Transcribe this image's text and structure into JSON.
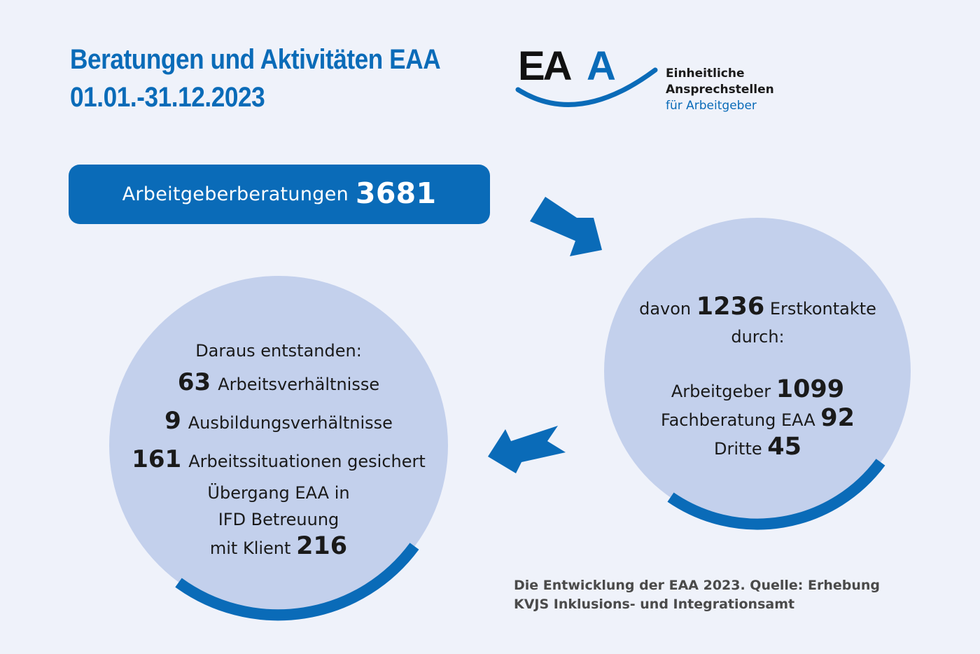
{
  "header": {
    "title_line1": "Beratungen und Aktivitäten EAA",
    "title_line2": "01.01.-31.12.2023"
  },
  "logo": {
    "mark": "EAA",
    "line1": "Einheitliche",
    "line2": "Ansprechstellen",
    "line3": "für Arbeitgeber"
  },
  "pill": {
    "label": "Arbeitgeberberatungen",
    "value": "3681"
  },
  "right_circle": {
    "prefix": "davon",
    "value": "1236",
    "suffix": "Erstkontakte",
    "line2": "durch:",
    "items": [
      {
        "label": "Arbeitgeber",
        "value": "1099"
      },
      {
        "label": "Fachberatung EAA",
        "value": "92"
      },
      {
        "label": "Dritte",
        "value": "45"
      }
    ]
  },
  "left_circle": {
    "heading": "Daraus entstanden:",
    "items": [
      {
        "value": "63",
        "label": "Arbeitsverhältnisse"
      },
      {
        "value": "9",
        "label": "Ausbildungsverhältnisse"
      },
      {
        "value": "161",
        "label": "Arbeitssituationen gesichert"
      }
    ],
    "transition_line1": "Übergang EAA in",
    "transition_line2": "IFD Betreuung",
    "transition_line3": "mit Klient",
    "transition_value": "216"
  },
  "source": {
    "line1": "Die Entwicklung der EAA 2023. Quelle: Erhebung",
    "line2": "KVJS Inklusions- und Integrationsamt"
  },
  "colors": {
    "primary_blue": "#0a6bb8",
    "circle_fill": "#c3d0ec",
    "background": "#eff2fa"
  }
}
